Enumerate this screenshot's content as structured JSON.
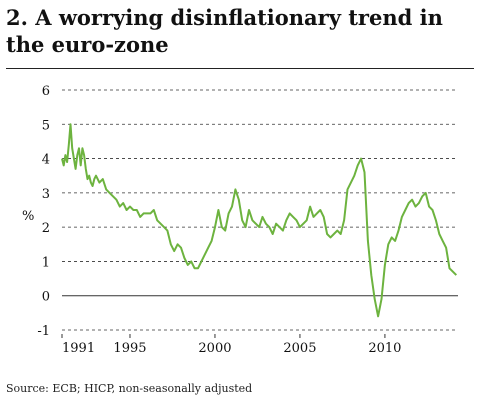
{
  "chart_data": {
    "type": "line",
    "title": "2. A worrying disinflationary trend in the euro-zone",
    "ylabel": "%",
    "xlabel": "",
    "source": "Source: ECB; HICP, non-seasonally adjusted",
    "ylim": [
      -1,
      6
    ],
    "xlim": [
      1991,
      2014.3
    ],
    "yticks": [
      -1,
      0,
      1,
      2,
      3,
      4,
      5,
      6
    ],
    "xticks": [
      1991,
      1995,
      2000,
      2005,
      2010
    ],
    "grid": true,
    "line_color": "#6db33f",
    "series": [
      {
        "x": [
          1991.0,
          1991.1,
          1991.2,
          1991.3,
          1991.4,
          1991.5,
          1991.6,
          1991.7,
          1991.8,
          1991.9,
          1992.0,
          1992.1,
          1992.2,
          1992.3,
          1992.4,
          1992.5,
          1992.6,
          1992.7,
          1992.8,
          1992.9,
          1993.0,
          1993.2,
          1993.4,
          1993.6,
          1993.8,
          1994.0,
          1994.2,
          1994.4,
          1994.6,
          1994.8,
          1995.0,
          1995.2,
          1995.4,
          1995.6,
          1995.8,
          1996.0,
          1996.2,
          1996.4,
          1996.6,
          1996.8,
          1997.0,
          1997.2,
          1997.4,
          1997.6,
          1997.8,
          1998.0,
          1998.2,
          1998.4,
          1998.6,
          1998.8,
          1999.0,
          1999.2,
          1999.4,
          1999.6,
          1999.8,
          2000.0,
          2000.2,
          2000.4,
          2000.6,
          2000.8,
          2001.0,
          2001.2,
          2001.4,
          2001.6,
          2001.8,
          2002.0,
          2002.2,
          2002.4,
          2002.6,
          2002.8,
          2003.0,
          2003.2,
          2003.4,
          2003.6,
          2003.8,
          2004.0,
          2004.2,
          2004.4,
          2004.6,
          2004.8,
          2005.0,
          2005.2,
          2005.4,
          2005.6,
          2005.8,
          2006.0,
          2006.2,
          2006.4,
          2006.6,
          2006.8,
          2007.0,
          2007.2,
          2007.4,
          2007.6,
          2007.8,
          2008.0,
          2008.2,
          2008.4,
          2008.6,
          2008.8,
          2009.0,
          2009.2,
          2009.4,
          2009.6,
          2009.8,
          2010.0,
          2010.2,
          2010.4,
          2010.6,
          2010.8,
          2011.0,
          2011.2,
          2011.4,
          2011.6,
          2011.8,
          2012.0,
          2012.2,
          2012.4,
          2012.6,
          2012.8,
          2013.0,
          2013.2,
          2013.4,
          2013.6,
          2013.8,
          2014.0,
          2014.2
        ],
        "y": [
          4.0,
          3.8,
          4.1,
          3.9,
          4.4,
          5.0,
          4.3,
          4.0,
          3.7,
          4.1,
          4.3,
          3.8,
          4.3,
          4.1,
          3.7,
          3.4,
          3.5,
          3.3,
          3.2,
          3.4,
          3.5,
          3.3,
          3.4,
          3.1,
          3.0,
          2.9,
          2.8,
          2.6,
          2.7,
          2.5,
          2.6,
          2.5,
          2.5,
          2.3,
          2.4,
          2.4,
          2.4,
          2.5,
          2.2,
          2.1,
          2.0,
          1.9,
          1.5,
          1.3,
          1.5,
          1.4,
          1.1,
          0.9,
          1.0,
          0.8,
          0.8,
          1.0,
          1.2,
          1.4,
          1.6,
          2.0,
          2.5,
          2.0,
          1.9,
          2.4,
          2.6,
          3.1,
          2.8,
          2.2,
          2.0,
          2.5,
          2.2,
          2.1,
          2.0,
          2.3,
          2.1,
          2.0,
          1.8,
          2.1,
          2.0,
          1.9,
          2.2,
          2.4,
          2.3,
          2.2,
          2.0,
          2.1,
          2.2,
          2.6,
          2.3,
          2.4,
          2.5,
          2.3,
          1.8,
          1.7,
          1.8,
          1.9,
          1.8,
          2.2,
          3.1,
          3.3,
          3.5,
          3.8,
          4.0,
          3.6,
          1.6,
          0.6,
          -0.1,
          -0.6,
          -0.1,
          0.9,
          1.5,
          1.7,
          1.6,
          1.9,
          2.3,
          2.5,
          2.7,
          2.8,
          2.6,
          2.7,
          2.9,
          3.0,
          2.6,
          2.5,
          2.2,
          1.8,
          1.6,
          1.4,
          0.8,
          0.7,
          0.6
        ]
      }
    ]
  }
}
